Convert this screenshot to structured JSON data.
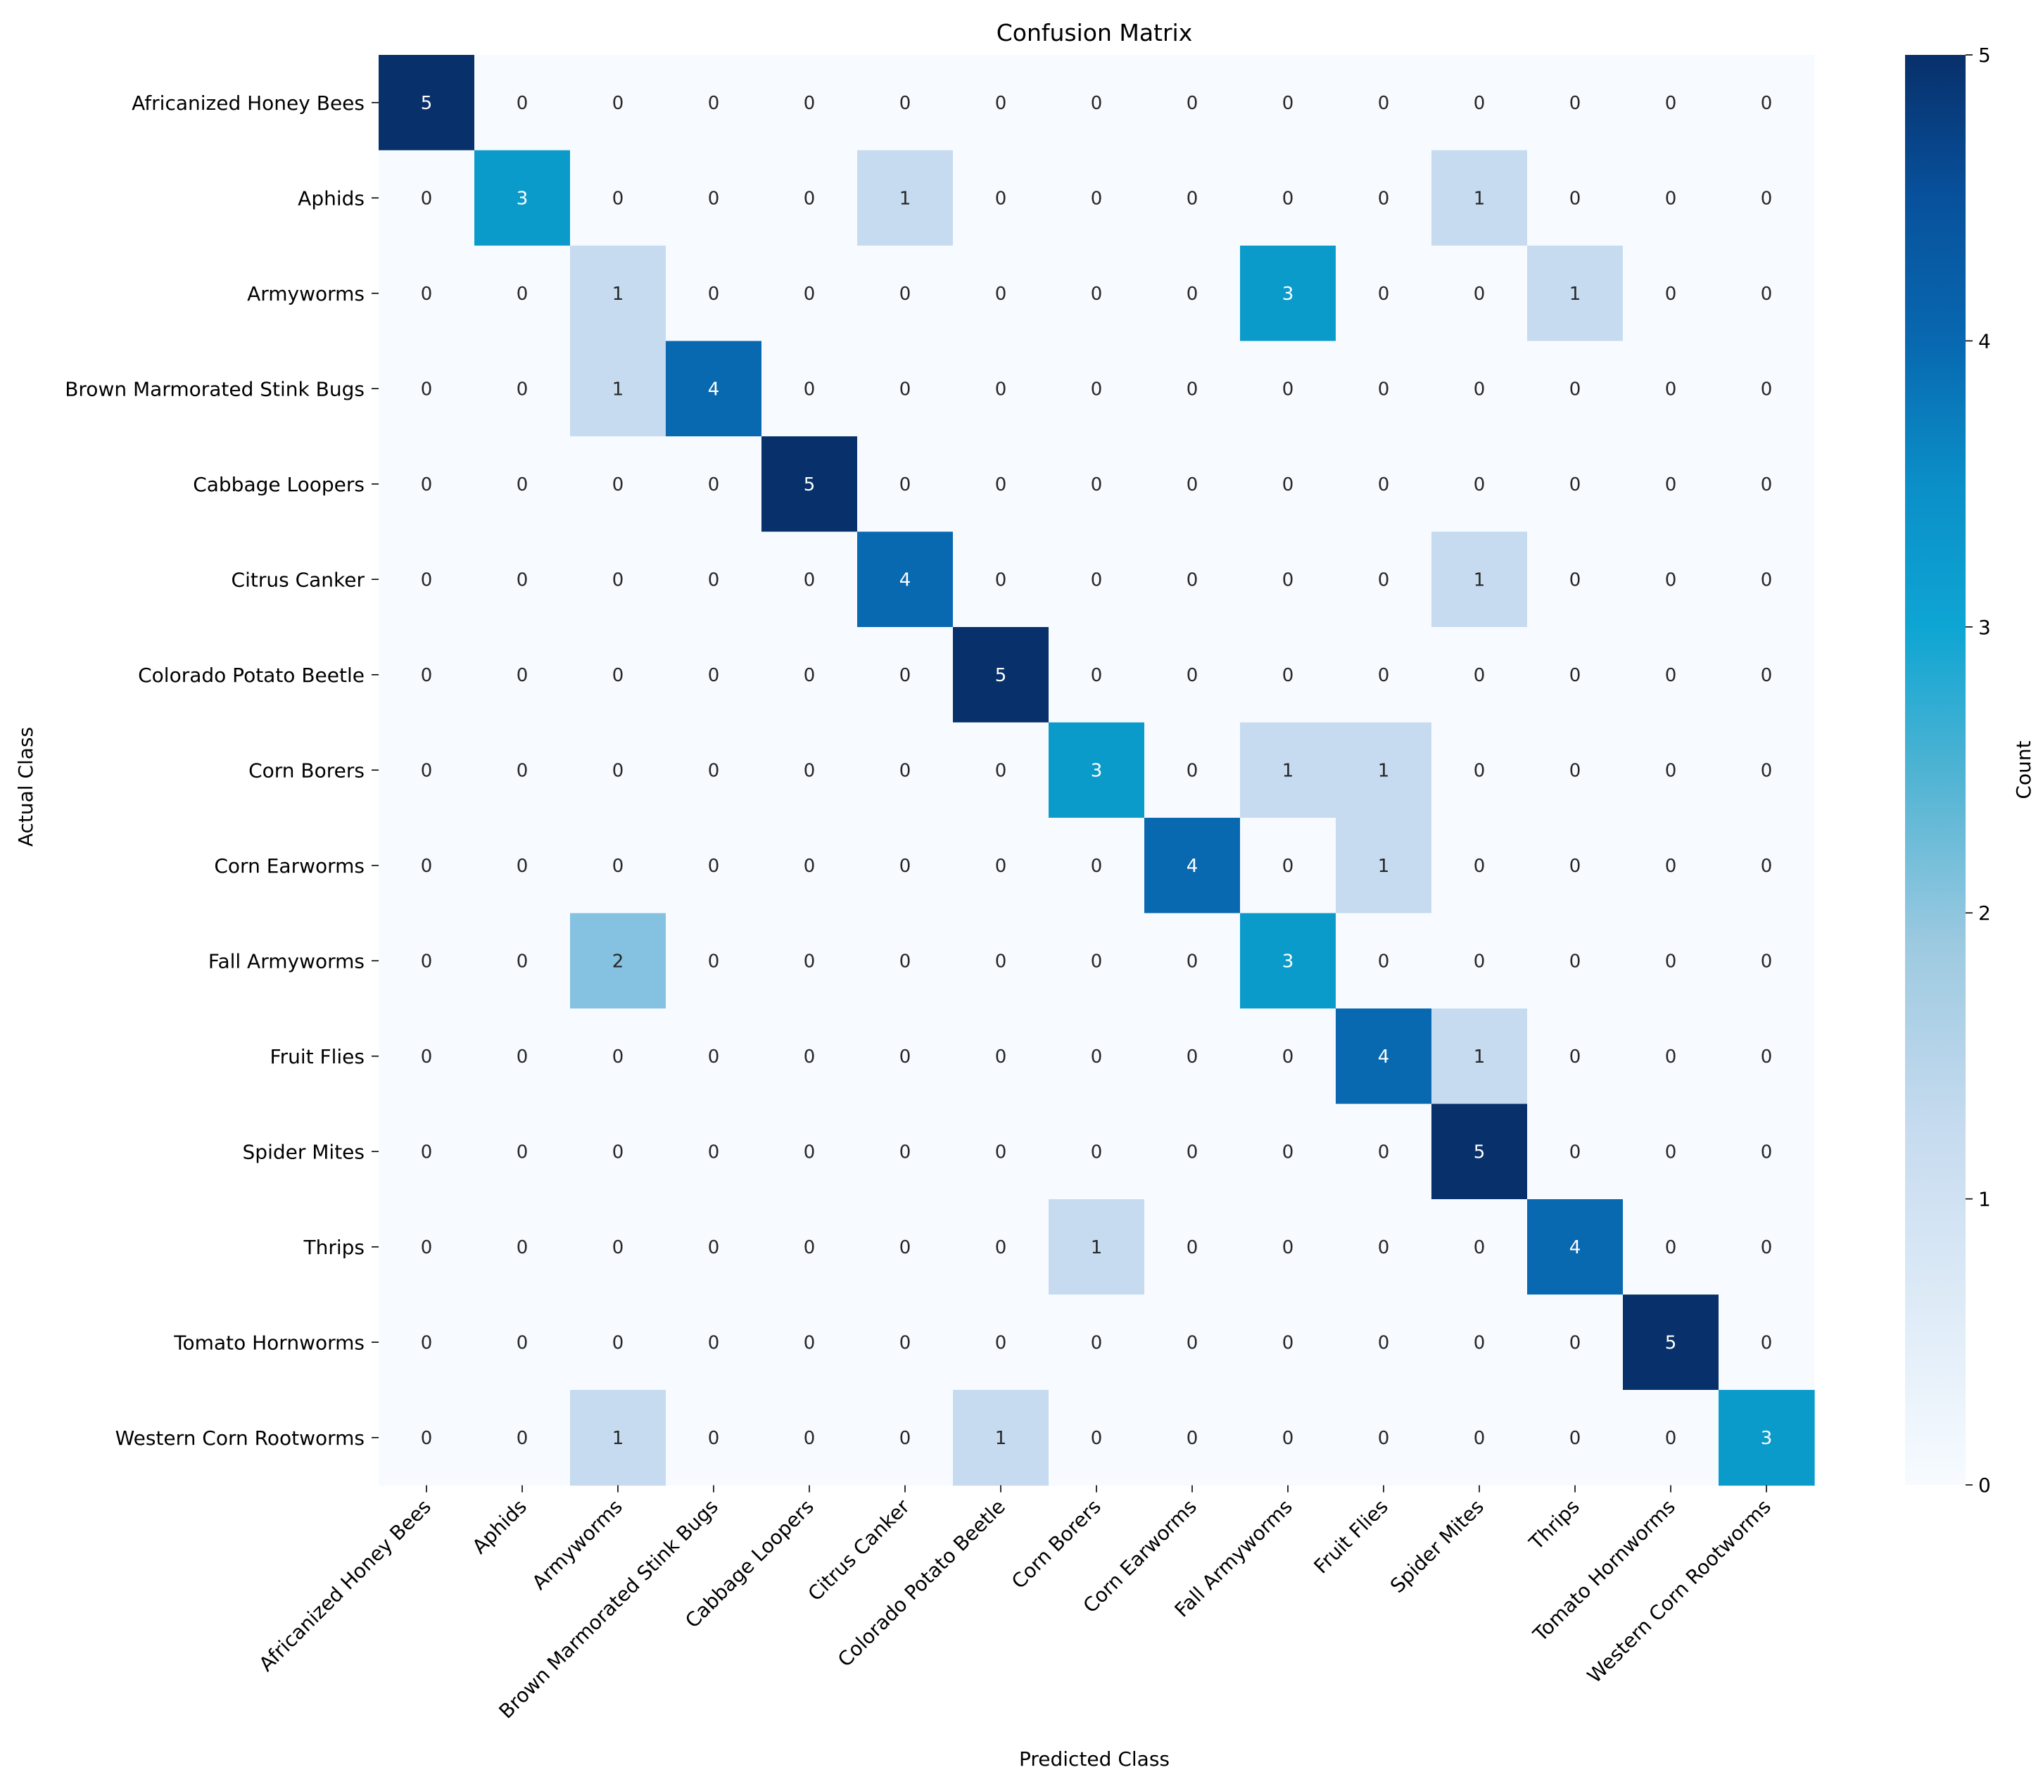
{
  "chart_data": {
    "type": "heatmap",
    "title": "Confusion Matrix",
    "xlabel": "Predicted Class",
    "ylabel": "Actual Class",
    "colorbar_label": "Count",
    "colormap": "Blues",
    "vmin": 0,
    "vmax": 5,
    "colorbar_ticks": [
      "0",
      "1",
      "2",
      "3",
      "4",
      "5"
    ],
    "x_categories": [
      "Africanized Honey Bees",
      "Aphids",
      "Armyworms",
      "Brown Marmorated Stink Bugs",
      "Cabbage Loopers",
      "Citrus Canker",
      "Colorado Potato Beetle",
      "Corn Borers",
      "Corn Earworms",
      "Fall Armyworms",
      "Fruit Flies",
      "Spider Mites",
      "Thrips",
      "Tomato Hornworms",
      "Western Corn Rootworms"
    ],
    "y_categories": [
      "Africanized Honey Bees",
      "Aphids",
      "Armyworms",
      "Brown Marmorated Stink Bugs",
      "Cabbage Loopers",
      "Citrus Canker",
      "Colorado Potato Beetle",
      "Corn Borers",
      "Corn Earworms",
      "Fall Armyworms",
      "Fruit Flies",
      "Spider Mites",
      "Thrips",
      "Tomato Hornworms",
      "Western Corn Rootworms"
    ],
    "matrix": [
      [
        5,
        0,
        0,
        0,
        0,
        0,
        0,
        0,
        0,
        0,
        0,
        0,
        0,
        0,
        0
      ],
      [
        0,
        3,
        0,
        0,
        0,
        1,
        0,
        0,
        0,
        0,
        0,
        1,
        0,
        0,
        0
      ],
      [
        0,
        0,
        1,
        0,
        0,
        0,
        0,
        0,
        0,
        3,
        0,
        0,
        1,
        0,
        0
      ],
      [
        0,
        0,
        1,
        4,
        0,
        0,
        0,
        0,
        0,
        0,
        0,
        0,
        0,
        0,
        0
      ],
      [
        0,
        0,
        0,
        0,
        5,
        0,
        0,
        0,
        0,
        0,
        0,
        0,
        0,
        0,
        0
      ],
      [
        0,
        0,
        0,
        0,
        0,
        4,
        0,
        0,
        0,
        0,
        0,
        1,
        0,
        0,
        0
      ],
      [
        0,
        0,
        0,
        0,
        0,
        0,
        5,
        0,
        0,
        0,
        0,
        0,
        0,
        0,
        0
      ],
      [
        0,
        0,
        0,
        0,
        0,
        0,
        0,
        3,
        0,
        1,
        1,
        0,
        0,
        0,
        0
      ],
      [
        0,
        0,
        0,
        0,
        0,
        0,
        0,
        0,
        4,
        0,
        1,
        0,
        0,
        0,
        0
      ],
      [
        0,
        0,
        2,
        0,
        0,
        0,
        0,
        0,
        0,
        3,
        0,
        0,
        0,
        0,
        0
      ],
      [
        0,
        0,
        0,
        0,
        0,
        0,
        0,
        0,
        0,
        0,
        4,
        1,
        0,
        0,
        0
      ],
      [
        0,
        0,
        0,
        0,
        0,
        0,
        0,
        0,
        0,
        0,
        0,
        5,
        0,
        0,
        0
      ],
      [
        0,
        0,
        0,
        0,
        0,
        0,
        0,
        1,
        0,
        0,
        0,
        0,
        4,
        0,
        0
      ],
      [
        0,
        0,
        0,
        0,
        0,
        0,
        0,
        0,
        0,
        0,
        0,
        0,
        0,
        5,
        0
      ],
      [
        0,
        0,
        1,
        0,
        0,
        0,
        1,
        0,
        0,
        0,
        0,
        0,
        0,
        0,
        3
      ]
    ],
    "colors": {
      "low": "#f7fbff",
      "one": "#c6dbef",
      "two": "#85c1e0",
      "three": "#0b9bcb",
      "four": "#0868b0",
      "high": "#08306b",
      "text_dark": "#262626",
      "text_light": "#ffffff"
    }
  }
}
